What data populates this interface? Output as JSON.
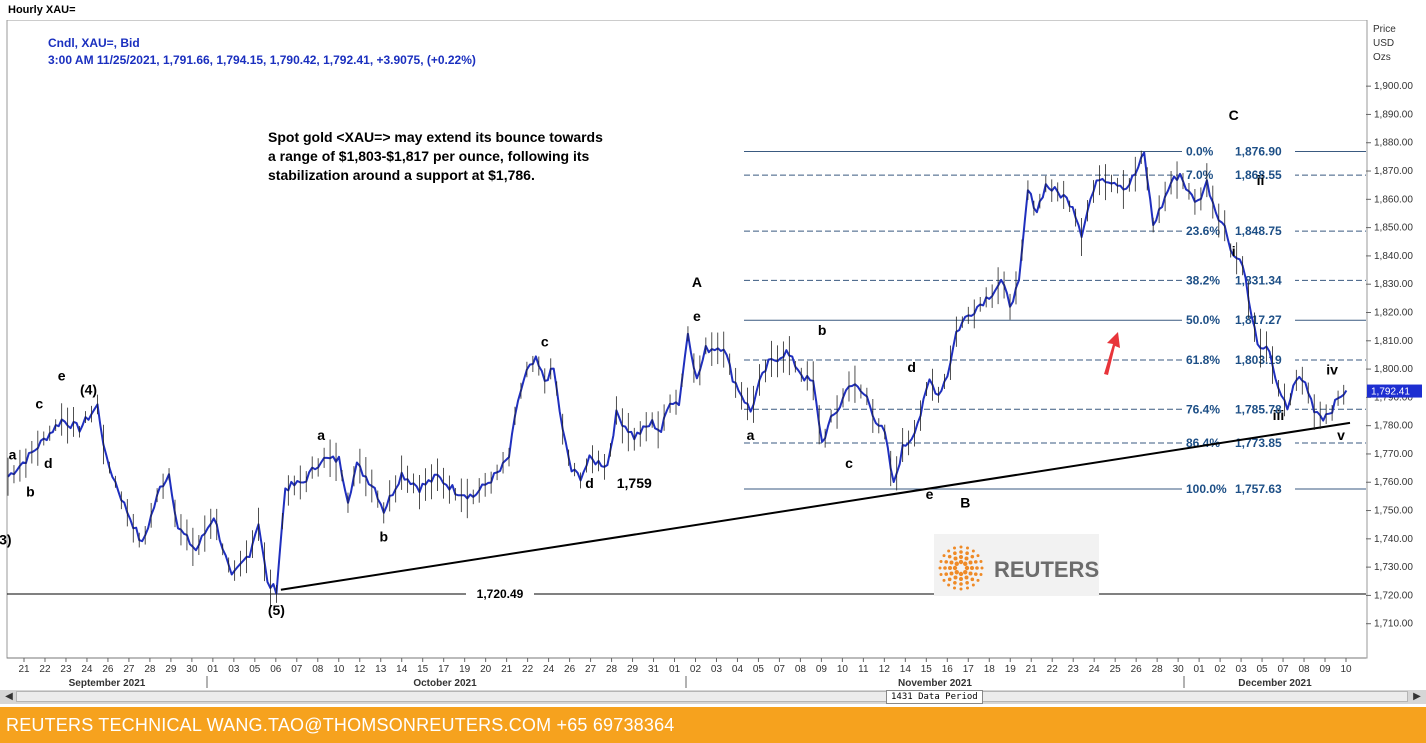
{
  "window_title": "Hourly XAU=",
  "header": {
    "line1": "Cndl, XAU=, Bid",
    "line2": "3:00 AM 11/25/2021, 1,791.66, 1,794.15, 1,790.42, 1,792.41, +3.9075, (+0.22%)"
  },
  "annotation": "Spot gold <XAU=> may extend its bounce towards\na range of $1,803-$1,817 per ounce, following its\nstabilization around a support at $1,786.",
  "axis_title": [
    "Price",
    "USD",
    "Ozs"
  ],
  "current_price_label": "1,792.41",
  "reuters_logo_text": "REUTERS",
  "data_period": "1431 Data Period",
  "footer": "REUTERS TECHNICAL  WANG.TAO@THOMSONREUTERS.COM  +65 69738364",
  "colors": {
    "candle": "#1f2fbe",
    "fib_line": "#3a5a80",
    "fib_text": "#1d4f86",
    "trendline": "#000000",
    "footer_bg": "#f6a21e",
    "arrow": "#e8343a",
    "price_tag": "#1d2ed1",
    "logo_orange": "#ef8a26"
  },
  "chart_data": {
    "type": "candlestick",
    "title": "Cndl, XAU=, Bid",
    "ylabel": "Price USD Ozs",
    "ylim": [
      1700,
      1905
    ],
    "y_ticks": [
      "1,710.00",
      "1,720.00",
      "1,730.00",
      "1,740.00",
      "1,750.00",
      "1,760.00",
      "1,770.00",
      "1,780.00",
      "1,790.00",
      "1,800.00",
      "1,810.00",
      "1,820.00",
      "1,830.00",
      "1,840.00",
      "1,850.00",
      "1,860.00",
      "1,870.00",
      "1,880.00",
      "1,890.00",
      "1,900.00"
    ],
    "x_ticks": [
      "21",
      "22",
      "23",
      "24",
      "26",
      "27",
      "28",
      "29",
      "30",
      "01",
      "03",
      "05",
      "06",
      "07",
      "08",
      "10",
      "12",
      "13",
      "14",
      "15",
      "17",
      "19",
      "20",
      "21",
      "22",
      "24",
      "26",
      "27",
      "28",
      "29",
      "31",
      "01",
      "02",
      "03",
      "04",
      "05",
      "07",
      "08",
      "09",
      "10",
      "11",
      "12",
      "14",
      "15",
      "16",
      "17",
      "18",
      "19",
      "21",
      "22",
      "23",
      "24",
      "25",
      "26",
      "28",
      "30",
      "01",
      "02",
      "03",
      "05",
      "07",
      "08",
      "09",
      "10"
    ],
    "x_months": [
      "September 2021",
      "October 2021",
      "November 2021",
      "December 2021"
    ],
    "price_path": [
      [
        0,
        1762
      ],
      [
        2,
        1768
      ],
      [
        4,
        1775
      ],
      [
        6,
        1782
      ],
      [
        8,
        1779
      ],
      [
        10,
        1787
      ],
      [
        11,
        1768
      ],
      [
        13,
        1752
      ],
      [
        15,
        1738
      ],
      [
        17,
        1758
      ],
      [
        18,
        1763
      ],
      [
        19,
        1744
      ],
      [
        21,
        1736
      ],
      [
        23,
        1748
      ],
      [
        25,
        1726
      ],
      [
        27,
        1735
      ],
      [
        28,
        1746
      ],
      [
        29,
        1724
      ],
      [
        30,
        1722
      ],
      [
        31,
        1758
      ],
      [
        33,
        1760
      ],
      [
        35,
        1768
      ],
      [
        37,
        1768
      ],
      [
        38,
        1754
      ],
      [
        39,
        1766
      ],
      [
        41,
        1758
      ],
      [
        42,
        1750
      ],
      [
        44,
        1763
      ],
      [
        46,
        1758
      ],
      [
        48,
        1762
      ],
      [
        50,
        1757
      ],
      [
        52,
        1755
      ],
      [
        54,
        1761
      ],
      [
        55,
        1764
      ],
      [
        56,
        1769
      ],
      [
        57,
        1789
      ],
      [
        58,
        1799
      ],
      [
        59,
        1803
      ],
      [
        60,
        1796
      ],
      [
        61,
        1800
      ],
      [
        62,
        1778
      ],
      [
        63,
        1764
      ],
      [
        64,
        1762
      ],
      [
        65,
        1768
      ],
      [
        67,
        1766
      ],
      [
        68,
        1784
      ],
      [
        70,
        1776
      ],
      [
        72,
        1781
      ],
      [
        73,
        1778
      ],
      [
        74,
        1789
      ],
      [
        75,
        1788
      ],
      [
        76,
        1813
      ],
      [
        77,
        1796
      ],
      [
        78,
        1807
      ],
      [
        80,
        1808
      ],
      [
        81,
        1797
      ],
      [
        83,
        1785
      ],
      [
        84,
        1795
      ],
      [
        85,
        1802
      ],
      [
        87,
        1806
      ],
      [
        89,
        1797
      ],
      [
        90,
        1795
      ],
      [
        91,
        1774
      ],
      [
        92,
        1782
      ],
      [
        93,
        1787
      ],
      [
        94,
        1795
      ],
      [
        95,
        1793
      ],
      [
        96,
        1790
      ],
      [
        97,
        1782
      ],
      [
        98,
        1777
      ],
      [
        99,
        1759
      ],
      [
        100,
        1772
      ],
      [
        101,
        1776
      ],
      [
        102,
        1784
      ],
      [
        103,
        1796
      ],
      [
        104,
        1791
      ],
      [
        105,
        1798
      ],
      [
        106,
        1813
      ],
      [
        107,
        1818
      ],
      [
        109,
        1824
      ],
      [
        110,
        1827
      ],
      [
        111,
        1831
      ],
      [
        112,
        1823
      ],
      [
        113,
        1830
      ],
      [
        114,
        1863
      ],
      [
        115,
        1856
      ],
      [
        116,
        1865
      ],
      [
        118,
        1861
      ],
      [
        119,
        1858
      ],
      [
        120,
        1848
      ],
      [
        121,
        1860
      ],
      [
        122,
        1868
      ],
      [
        124,
        1866
      ],
      [
        125,
        1864
      ],
      [
        126,
        1869
      ],
      [
        127,
        1876
      ],
      [
        128,
        1851
      ],
      [
        129,
        1858
      ],
      [
        130,
        1866
      ],
      [
        131,
        1869
      ],
      [
        132,
        1862
      ],
      [
        133,
        1859
      ],
      [
        134,
        1866
      ],
      [
        135,
        1856
      ],
      [
        136,
        1850
      ],
      [
        137,
        1840
      ],
      [
        138,
        1838
      ],
      [
        139,
        1818
      ],
      [
        140,
        1806
      ],
      [
        141,
        1807
      ],
      [
        142,
        1792
      ],
      [
        143,
        1786
      ],
      [
        144,
        1797
      ],
      [
        145,
        1795
      ],
      [
        146,
        1786
      ],
      [
        147,
        1783
      ],
      [
        148,
        1786
      ],
      [
        149,
        1791
      ],
      [
        149.6,
        1792.41
      ]
    ],
    "fibonacci": [
      {
        "level": "0.0%",
        "price": 1876.9,
        "label": "1,876.90",
        "style": "solid"
      },
      {
        "level": "7.0%",
        "price": 1868.55,
        "label": "1,868.55",
        "style": "dashed"
      },
      {
        "level": "23.6%",
        "price": 1848.75,
        "label": "1,848.75",
        "style": "dashed"
      },
      {
        "level": "38.2%",
        "price": 1831.34,
        "label": "1,831.34",
        "style": "dashed"
      },
      {
        "level": "50.0%",
        "price": 1817.27,
        "label": "1,817.27",
        "style": "solid"
      },
      {
        "level": "61.8%",
        "price": 1803.19,
        "label": "1,803.19",
        "style": "dashed"
      },
      {
        "level": "76.4%",
        "price": 1785.78,
        "label": "1,785.78",
        "style": "dashed"
      },
      {
        "level": "86.4%",
        "price": 1773.85,
        "label": "1,773.85",
        "style": "dashed"
      },
      {
        "level": "100.0%",
        "price": 1757.63,
        "label": "1,757.63",
        "style": "solid"
      }
    ],
    "support_line": {
      "price": 1720.49,
      "label": "1,720.49"
    },
    "trendline": [
      [
        30.5,
        1722
      ],
      [
        150,
        1781
      ]
    ],
    "wave_labels": [
      {
        "text": "a",
        "x": 0.5,
        "y": 1768
      },
      {
        "text": "b",
        "x": 2.5,
        "y": 1755
      },
      {
        "text": "c",
        "x": 3.5,
        "y": 1786
      },
      {
        "text": "d",
        "x": 4.5,
        "y": 1765
      },
      {
        "text": "e",
        "x": 6,
        "y": 1796
      },
      {
        "text": "(4)",
        "x": 9,
        "y": 1791
      },
      {
        "text": "3)",
        "x": -0.3,
        "y": 1738
      },
      {
        "text": "a",
        "x": 35,
        "y": 1775
      },
      {
        "text": "b",
        "x": 42,
        "y": 1739
      },
      {
        "text": "(5)",
        "x": 30,
        "y": 1713
      },
      {
        "text": "c",
        "x": 60,
        "y": 1808
      },
      {
        "text": "d",
        "x": 65,
        "y": 1758
      },
      {
        "text": "1,759",
        "x": 70,
        "y": 1758
      },
      {
        "text": "A",
        "x": 77,
        "y": 1829
      },
      {
        "text": "e",
        "x": 77,
        "y": 1817
      },
      {
        "text": "a",
        "x": 83,
        "y": 1775
      },
      {
        "text": "b",
        "x": 91,
        "y": 1812
      },
      {
        "text": "c",
        "x": 94,
        "y": 1765
      },
      {
        "text": "d",
        "x": 101,
        "y": 1799
      },
      {
        "text": "e",
        "x": 103,
        "y": 1754
      },
      {
        "text": "B",
        "x": 107,
        "y": 1751
      },
      {
        "text": "C",
        "x": 137,
        "y": 1888
      },
      {
        "text": "ii",
        "x": 140,
        "y": 1865
      },
      {
        "text": "i",
        "x": 137,
        "y": 1840
      },
      {
        "text": "iii",
        "x": 142,
        "y": 1782
      },
      {
        "text": "iv",
        "x": 148,
        "y": 1798
      },
      {
        "text": "v",
        "x": 149,
        "y": 1775
      }
    ]
  }
}
